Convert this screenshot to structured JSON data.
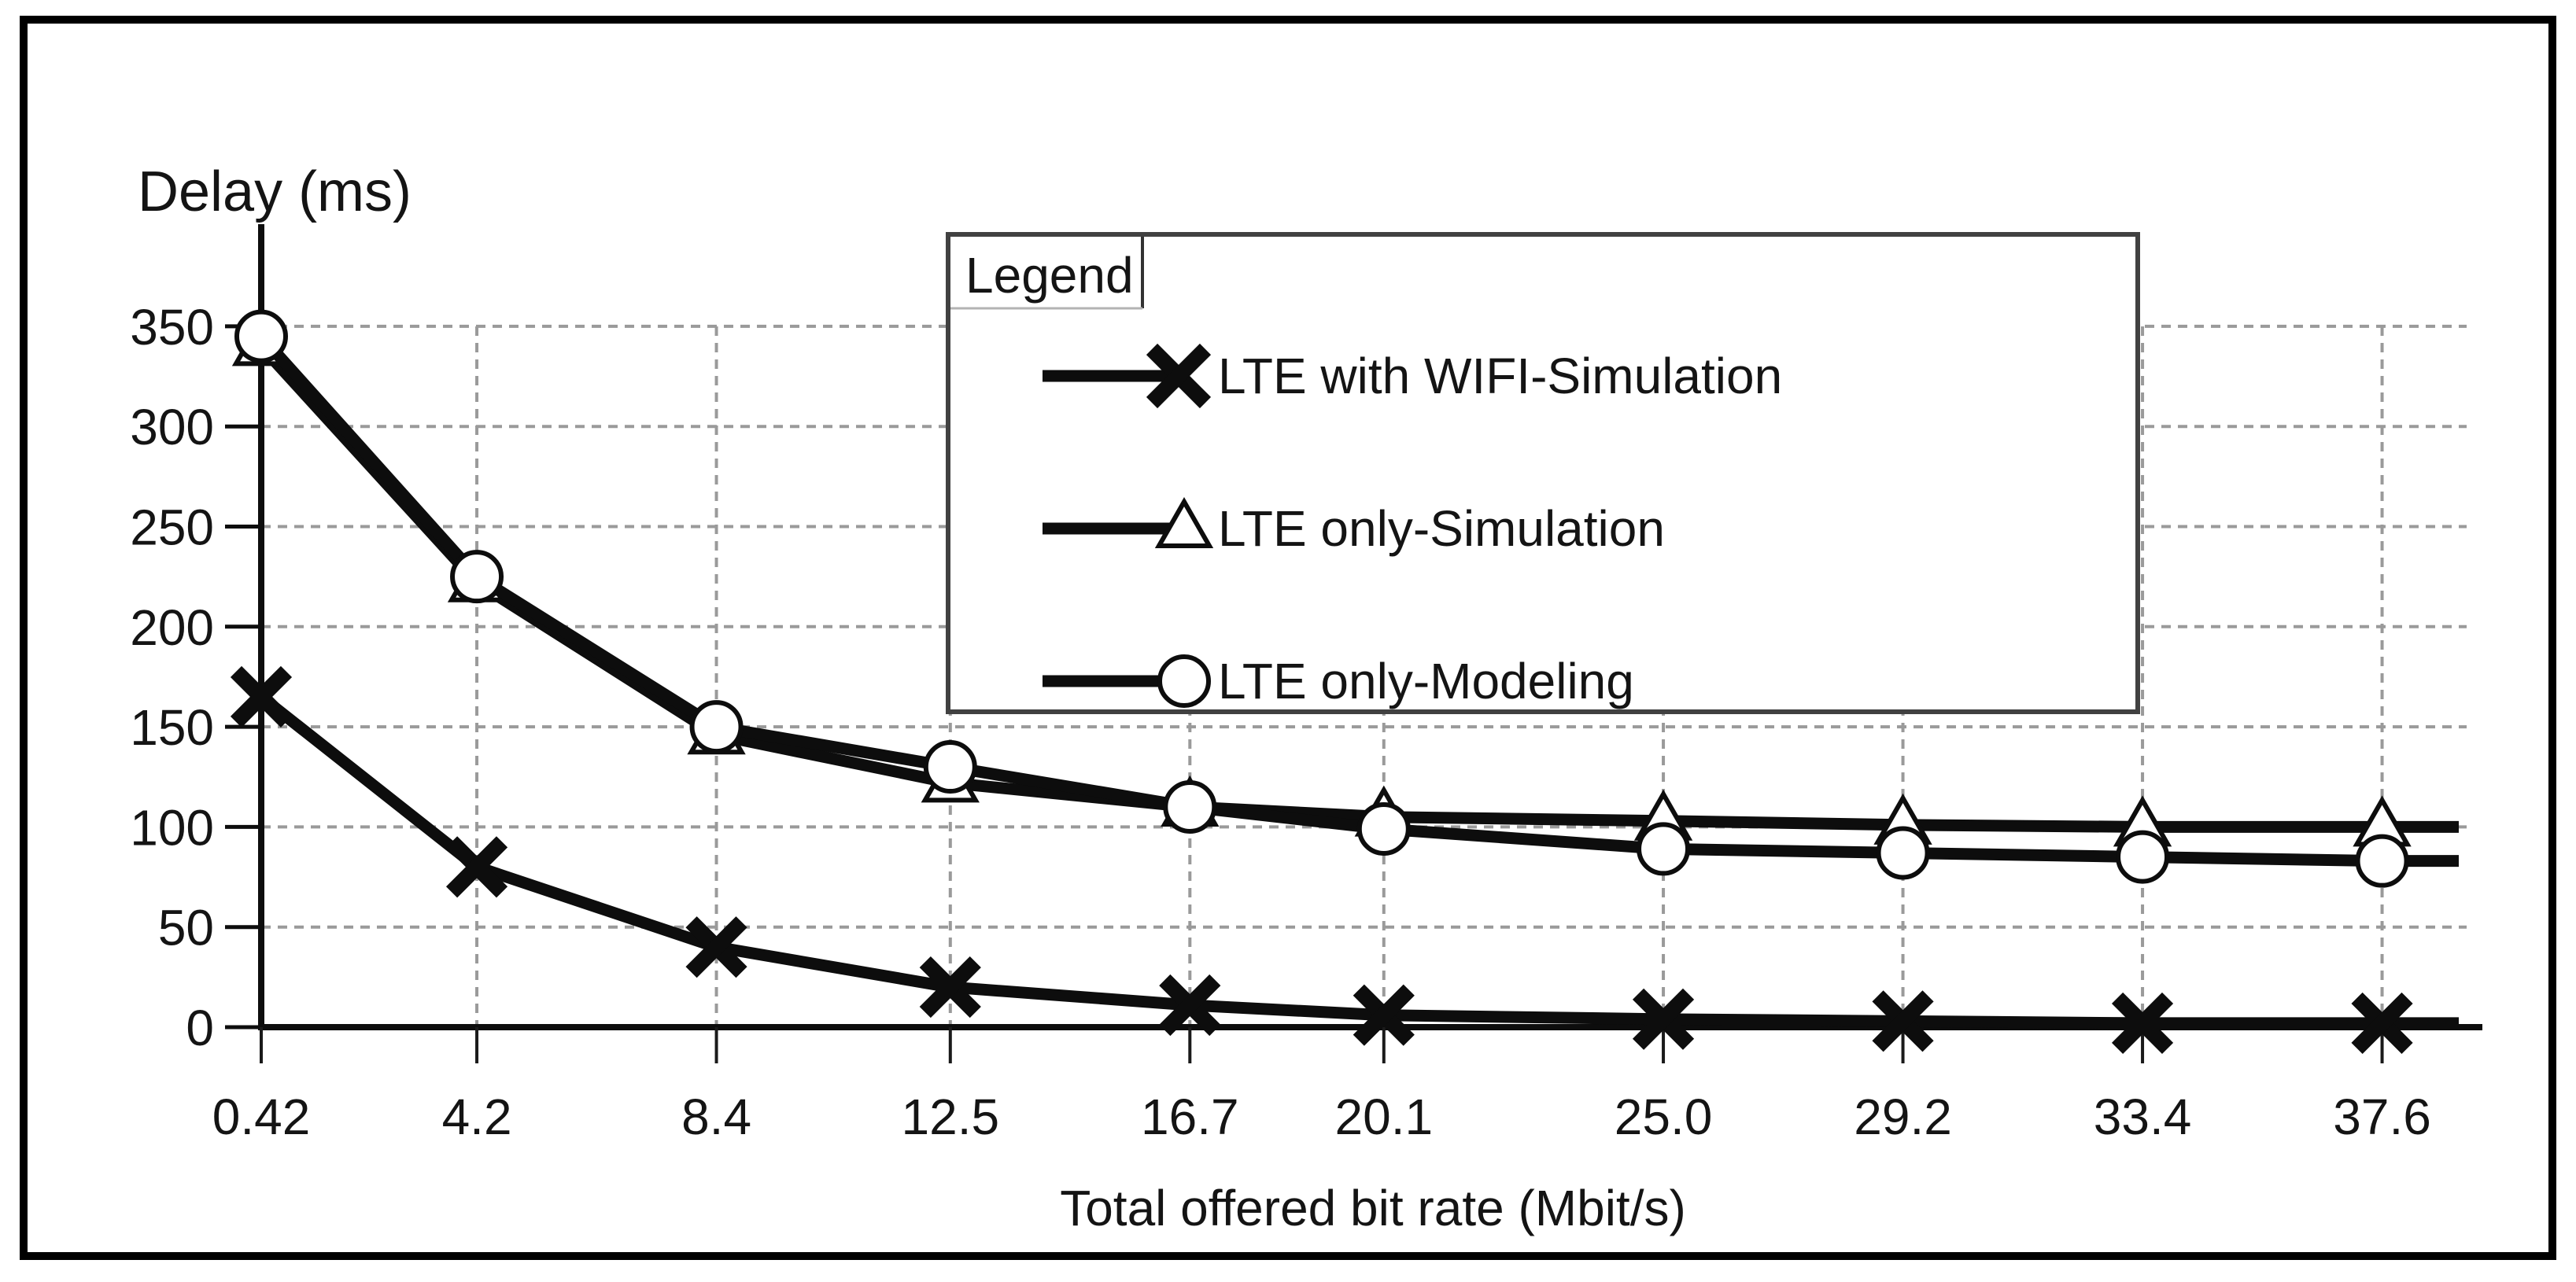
{
  "figure": {
    "background_color": "#ffffff",
    "border_color": "#000000",
    "line_color": "#0d0d0d",
    "grid_color": "#9a9a9a",
    "legend_border_color": "#414141"
  },
  "chart_data": {
    "type": "line",
    "title": "",
    "ylabel": "Delay (ms)",
    "xlabel": "Total offered bit rate (Mbit/s)",
    "x": [
      0.42,
      4.2,
      8.4,
      12.5,
      16.7,
      20.1,
      25.0,
      29.2,
      33.4,
      37.6
    ],
    "x_tick_labels": [
      "0.42",
      "4.2",
      "8.4",
      "12.5",
      "16.7",
      "20.1",
      "25.0",
      "29.2",
      "33.4",
      "37.6"
    ],
    "y_ticks": [
      0,
      50,
      100,
      150,
      200,
      250,
      300,
      350
    ],
    "y_tick_labels": [
      "0",
      "50",
      "100",
      "150",
      "200",
      "250",
      "300",
      "350"
    ],
    "xlim": [
      0.42,
      38.9
    ],
    "ylim": [
      0,
      375
    ],
    "grid": true,
    "legend_title": "Legend",
    "legend_position": "upper-middle",
    "series": [
      {
        "name": "LTE with WIFI-Simulation",
        "marker": "x-marker",
        "color": "#0d0d0d",
        "values": [
          165,
          80,
          40,
          20,
          11,
          6,
          4,
          3,
          2,
          2
        ]
      },
      {
        "name": "LTE only-Simulation",
        "marker": "open-triangle-marker",
        "color": "#0d0d0d",
        "values": [
          340,
          222,
          146,
          122,
          110,
          105,
          103,
          101,
          100,
          100
        ]
      },
      {
        "name": "LTE only-Modeling",
        "marker": "open-circle-marker",
        "color": "#0d0d0d",
        "values": [
          345,
          225,
          150,
          130,
          110,
          99,
          89,
          87,
          85,
          83
        ]
      }
    ]
  }
}
